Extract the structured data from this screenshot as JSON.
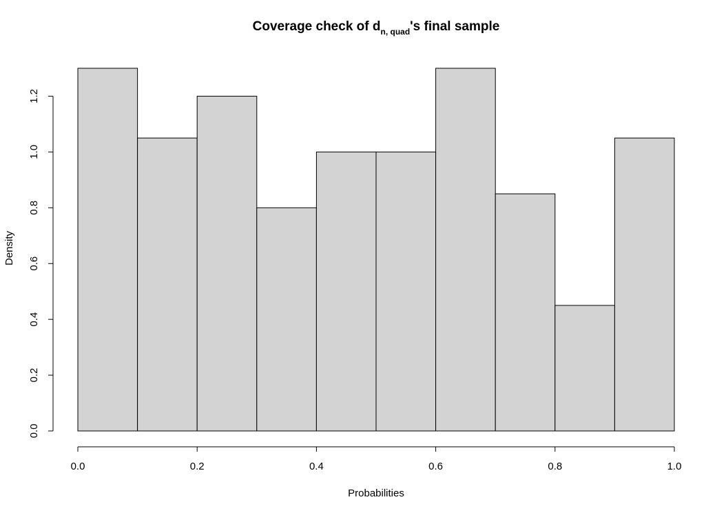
{
  "chart_data": {
    "type": "bar",
    "title": {
      "main": "Coverage check of d",
      "subscript": "n, quad",
      "suffix": "'s final sample"
    },
    "xlabel": "Probabilities",
    "ylabel": "Density",
    "bins": [
      {
        "from": 0.0,
        "to": 0.1,
        "density": 1.3
      },
      {
        "from": 0.1,
        "to": 0.2,
        "density": 1.05
      },
      {
        "from": 0.2,
        "to": 0.3,
        "density": 1.2
      },
      {
        "from": 0.3,
        "to": 0.4,
        "density": 0.8
      },
      {
        "from": 0.4,
        "to": 0.5,
        "density": 1.0
      },
      {
        "from": 0.5,
        "to": 0.6,
        "density": 1.0
      },
      {
        "from": 0.6,
        "to": 0.7,
        "density": 1.3
      },
      {
        "from": 0.7,
        "to": 0.8,
        "density": 0.85
      },
      {
        "from": 0.8,
        "to": 0.9,
        "density": 0.45
      },
      {
        "from": 0.9,
        "to": 1.0,
        "density": 1.05
      }
    ],
    "xlim": [
      0,
      1
    ],
    "ylim": [
      0,
      1.3
    ],
    "x_ticks": [
      0.0,
      0.2,
      0.4,
      0.6,
      0.8,
      1.0
    ],
    "x_tick_labels": [
      "0.0",
      "0.2",
      "0.4",
      "0.6",
      "0.8",
      "1.0"
    ],
    "y_ticks": [
      0.0,
      0.2,
      0.4,
      0.6,
      0.8,
      1.0,
      1.2
    ],
    "y_tick_labels": [
      "0.0",
      "0.2",
      "0.4",
      "0.6",
      "0.8",
      "1.0",
      "1.2"
    ],
    "grid": false,
    "colors": {
      "bar_fill": "#d3d3d3",
      "bar_stroke": "#000000"
    }
  }
}
